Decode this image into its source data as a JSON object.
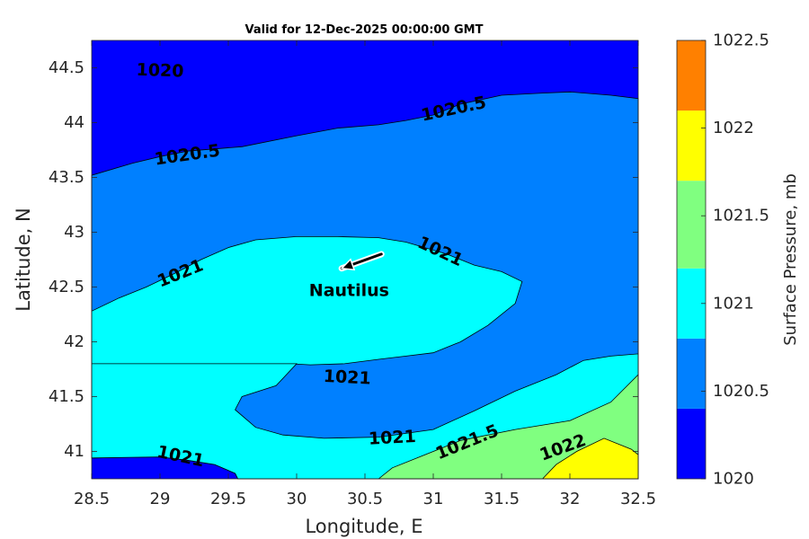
{
  "chart_data": {
    "type": "heatmap",
    "subtype": "filled-contour",
    "title": "Valid for 12-Dec-2025 00:00:00 GMT",
    "xlabel": "Longitude, E",
    "ylabel": "Latitude, N",
    "xlim": [
      28.5,
      32.5
    ],
    "ylim": [
      40.75,
      44.75
    ],
    "x_ticks": [
      "28.5",
      "29",
      "29.5",
      "30",
      "30.5",
      "31",
      "31.5",
      "32",
      "32.5"
    ],
    "y_ticks": [
      "41",
      "41.5",
      "42",
      "42.5",
      "43",
      "43.5",
      "44",
      "44.5"
    ],
    "colorbar": {
      "label": "Surface Pressure, mb",
      "range": [
        1020,
        1022.5
      ],
      "ticks": [
        "1020",
        "1020.5",
        "1021",
        "1021.5",
        "1022",
        "1022.5"
      ],
      "bands": [
        {
          "from": 1020.0,
          "to": 1020.4,
          "color": "#0000ff"
        },
        {
          "from": 1020.4,
          "to": 1020.8,
          "color": "#0080ff"
        },
        {
          "from": 1020.8,
          "to": 1021.2,
          "color": "#00ffff"
        },
        {
          "from": 1021.2,
          "to": 1021.7,
          "color": "#80ff80"
        },
        {
          "from": 1021.7,
          "to": 1022.1,
          "color": "#ffff00"
        },
        {
          "from": 1022.1,
          "to": 1022.5,
          "color": "#ff8000"
        }
      ]
    },
    "contour_regions": [
      {
        "level": 1020.5,
        "color": "#0080ff",
        "points": [
          [
            28.5,
            40.94
          ],
          [
            29.0,
            40.95
          ],
          [
            29.2,
            40.92
          ],
          [
            29.4,
            40.88
          ],
          [
            29.55,
            40.8
          ],
          [
            29.57,
            40.75
          ],
          [
            32.5,
            40.75
          ],
          [
            32.5,
            44.22
          ],
          [
            32.3,
            44.25
          ],
          [
            32.0,
            44.28
          ],
          [
            31.8,
            44.27
          ],
          [
            31.5,
            44.25
          ],
          [
            31.2,
            44.17
          ],
          [
            31.0,
            44.07
          ],
          [
            30.8,
            44.02
          ],
          [
            30.6,
            43.98
          ],
          [
            30.3,
            43.95
          ],
          [
            30.0,
            43.88
          ],
          [
            29.6,
            43.78
          ],
          [
            29.2,
            43.74
          ],
          [
            29.0,
            43.69
          ],
          [
            28.8,
            43.63
          ],
          [
            28.5,
            43.52
          ]
        ]
      },
      {
        "level": 1021.0,
        "color": "#00ffff",
        "points": [
          [
            28.5,
            42.28
          ],
          [
            28.7,
            42.4
          ],
          [
            28.9,
            42.5
          ],
          [
            29.1,
            42.62
          ],
          [
            29.3,
            42.75
          ],
          [
            29.5,
            42.86
          ],
          [
            29.7,
            42.93
          ],
          [
            30.0,
            42.96
          ],
          [
            30.3,
            42.96
          ],
          [
            30.6,
            42.95
          ],
          [
            30.8,
            42.91
          ],
          [
            31.1,
            42.8
          ],
          [
            31.3,
            42.7
          ],
          [
            31.5,
            42.64
          ],
          [
            31.65,
            42.55
          ],
          [
            31.6,
            42.35
          ],
          [
            31.4,
            42.15
          ],
          [
            31.2,
            42.0
          ],
          [
            31.0,
            41.9
          ],
          [
            30.8,
            41.87
          ],
          [
            30.6,
            41.84
          ],
          [
            30.35,
            41.8
          ],
          [
            30.1,
            41.79
          ],
          [
            29.95,
            41.8
          ],
          [
            29.8,
            41.62
          ],
          [
            29.55,
            41.56
          ],
          [
            29.2,
            41.55
          ],
          [
            28.9,
            41.58
          ],
          [
            28.5,
            41.63
          ],
          [
            28.5,
            42.28
          ]
        ]
      },
      {
        "level": 1021.0,
        "color": "#00ffff",
        "points": [
          [
            28.5,
            40.94
          ],
          [
            29.0,
            40.95
          ],
          [
            29.2,
            40.92
          ],
          [
            29.4,
            40.88
          ],
          [
            29.55,
            40.8
          ],
          [
            29.57,
            40.75
          ],
          [
            31.5,
            40.75
          ],
          [
            32.5,
            40.75
          ],
          [
            32.5,
            41.89
          ],
          [
            32.3,
            41.87
          ],
          [
            32.1,
            41.83
          ],
          [
            31.9,
            41.7
          ],
          [
            31.6,
            41.55
          ],
          [
            31.3,
            41.37
          ],
          [
            31.0,
            41.2
          ],
          [
            30.6,
            41.13
          ],
          [
            30.2,
            41.12
          ],
          [
            29.9,
            41.15
          ],
          [
            29.7,
            41.22
          ],
          [
            29.55,
            41.38
          ],
          [
            29.6,
            41.5
          ],
          [
            29.85,
            41.6
          ],
          [
            30.0,
            41.8
          ],
          [
            28.5,
            41.8
          ],
          [
            28.5,
            40.94
          ]
        ]
      },
      {
        "level": 1021.5,
        "color": "#80ff80",
        "points": [
          [
            30.6,
            40.75
          ],
          [
            30.7,
            40.85
          ],
          [
            30.9,
            40.95
          ],
          [
            31.2,
            41.1
          ],
          [
            31.6,
            41.2
          ],
          [
            32.0,
            41.28
          ],
          [
            32.3,
            41.45
          ],
          [
            32.5,
            41.7
          ],
          [
            32.5,
            40.75
          ]
        ]
      },
      {
        "level": 1022.0,
        "color": "#ffff00",
        "points": [
          [
            31.8,
            40.75
          ],
          [
            31.9,
            40.88
          ],
          [
            32.05,
            41.0
          ],
          [
            32.25,
            41.12
          ],
          [
            32.45,
            41.02
          ],
          [
            32.5,
            40.97
          ],
          [
            32.5,
            40.75
          ]
        ]
      }
    ],
    "contour_labels": [
      {
        "text": "1020",
        "x": 29.0,
        "y": 44.47,
        "angle": 2
      },
      {
        "text": "1020.5",
        "x": 29.2,
        "y": 43.7,
        "angle": -8
      },
      {
        "text": "1020.5",
        "x": 31.15,
        "y": 44.12,
        "angle": -12
      },
      {
        "text": "1021",
        "x": 29.15,
        "y": 42.62,
        "angle": -22
      },
      {
        "text": "1021",
        "x": 31.05,
        "y": 42.82,
        "angle": 25
      },
      {
        "text": "1021",
        "x": 30.37,
        "y": 41.67,
        "angle": 3
      },
      {
        "text": "1021",
        "x": 30.7,
        "y": 41.12,
        "angle": -3
      },
      {
        "text": "1021",
        "x": 29.15,
        "y": 40.95,
        "angle": 12
      },
      {
        "text": "1021.5",
        "x": 31.25,
        "y": 41.08,
        "angle": -22
      },
      {
        "text": "1022",
        "x": 31.95,
        "y": 41.03,
        "angle": -20
      }
    ],
    "marker": {
      "label": "Nautilus",
      "x": 30.45,
      "y": 42.72,
      "arrow_to": {
        "x": 30.33,
        "y": 42.67
      },
      "arrow_from": {
        "x": 30.62,
        "y": 42.8
      }
    }
  }
}
